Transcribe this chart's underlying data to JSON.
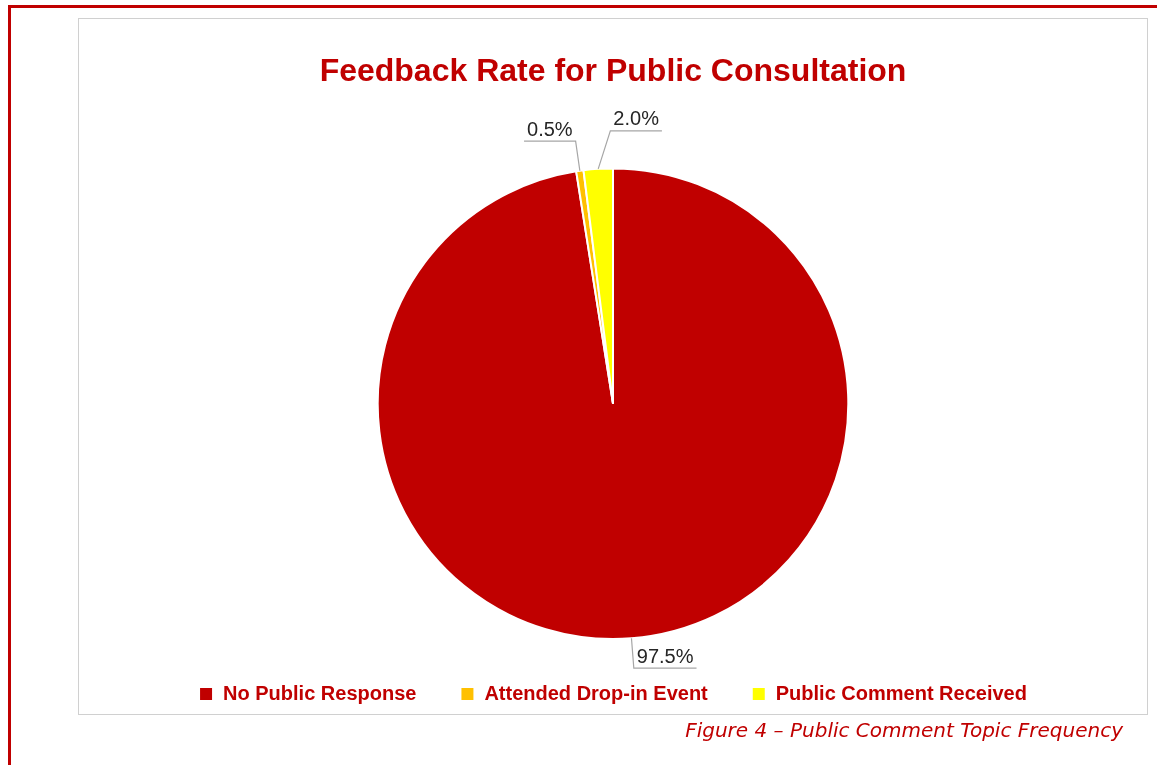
{
  "chart_data": {
    "type": "pie",
    "title": "Feedback Rate for Public Consultation",
    "categories": [
      "No Public Response",
      "Attended Drop-in Event",
      "Public Comment Received"
    ],
    "values": [
      97.5,
      0.5,
      2.0
    ],
    "colors": [
      "#c00000",
      "#ffc000",
      "#ffff00"
    ],
    "value_labels": [
      "97.5%",
      "0.5%",
      "2.0%"
    ],
    "legend": "bottom",
    "annotations": [
      "Figure 4 – Public Comment Topic Frequency"
    ]
  }
}
